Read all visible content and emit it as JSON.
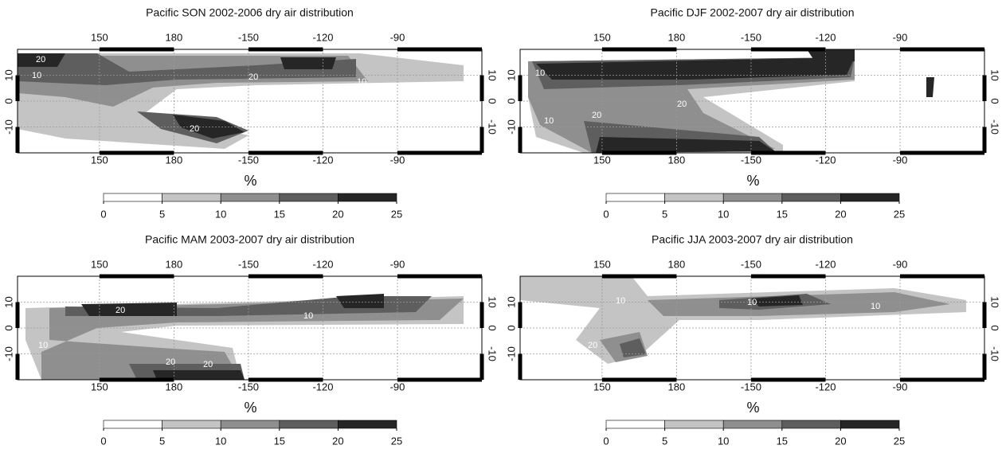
{
  "panels": [
    {
      "title": "Pacific SON 2002-2006 dry air distribution",
      "lon_ticks": [
        150,
        180,
        -150,
        -120,
        -90
      ],
      "lat_ticks": [
        10,
        0,
        -10
      ],
      "lon_range": [
        117,
        -56
      ],
      "lat_range": [
        -20,
        20
      ],
      "unit": "%",
      "colorbar": {
        "range": [
          0,
          25
        ],
        "ticks": [
          0,
          5,
          10,
          15,
          20,
          25
        ],
        "colors": [
          "#ffffff",
          "#c4c4c4",
          "#8f8f8f",
          "#5e5e5e",
          "#262626"
        ]
      },
      "contour_labels": [
        20,
        10,
        20,
        10,
        20
      ]
    },
    {
      "title": "Pacific DJF 2002-2007 dry air distribution",
      "lon_ticks": [
        150,
        180,
        -150,
        -120,
        -90
      ],
      "lat_ticks": [
        10,
        0,
        -10
      ],
      "lon_range": [
        117,
        -56
      ],
      "lat_range": [
        -20,
        20
      ],
      "unit": "%",
      "colorbar": {
        "range": [
          0,
          25
        ],
        "ticks": [
          0,
          5,
          10,
          15,
          20,
          25
        ],
        "colors": [
          "#ffffff",
          "#c4c4c4",
          "#8f8f8f",
          "#5e5e5e",
          "#262626"
        ]
      },
      "contour_labels": [
        10,
        20,
        10,
        20
      ]
    },
    {
      "title": "Pacific MAM 2003-2007 dry air distribution",
      "lon_ticks": [
        150,
        180,
        -150,
        -120,
        -90
      ],
      "lat_ticks": [
        10,
        0,
        -10
      ],
      "lon_range": [
        117,
        -56
      ],
      "lat_range": [
        -20,
        20
      ],
      "unit": "%",
      "colorbar": {
        "range": [
          0,
          25
        ],
        "ticks": [
          0,
          5,
          10,
          15,
          20,
          25
        ],
        "colors": [
          "#ffffff",
          "#c4c4c4",
          "#8f8f8f",
          "#5e5e5e",
          "#262626"
        ]
      },
      "contour_labels": [
        20,
        10,
        10,
        20,
        20
      ]
    },
    {
      "title": "Pacific JJA 2003-2007 dry air distribution",
      "lon_ticks": [
        150,
        180,
        -150,
        -120,
        -90
      ],
      "lat_ticks": [
        10,
        0,
        -10
      ],
      "lon_range": [
        117,
        -56
      ],
      "lat_range": [
        -20,
        20
      ],
      "unit": "%",
      "colorbar": {
        "range": [
          0,
          25
        ],
        "ticks": [
          0,
          5,
          10,
          15,
          20,
          25
        ],
        "colors": [
          "#ffffff",
          "#c4c4c4",
          "#8f8f8f",
          "#5e5e5e",
          "#262626"
        ]
      },
      "contour_labels": [
        10,
        10,
        10,
        20
      ]
    }
  ]
}
